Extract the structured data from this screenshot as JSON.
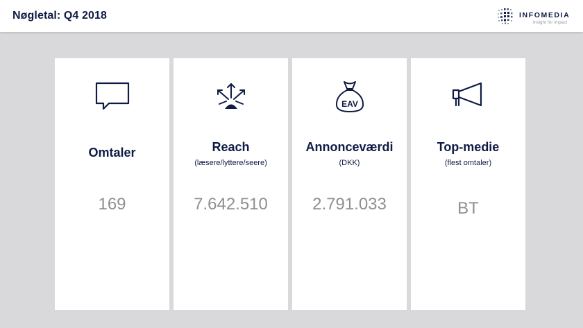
{
  "header": {
    "title": "Nøgletal: Q4 2018",
    "brand_name": "INFOMEDIA",
    "brand_tagline": "Insight for impact"
  },
  "colors": {
    "navy": "#0f1b45",
    "value_gray": "#8f8f8f",
    "background": "#d9d9dc",
    "card": "#ffffff"
  },
  "cards": [
    {
      "icon": "speech-bubble-icon",
      "label": "Omtaler",
      "sublabel": "",
      "value": "169"
    },
    {
      "icon": "broadcast-arrows-icon",
      "label": "Reach",
      "sublabel": "(læsere/lyttere/seere)",
      "value": "7.642.510"
    },
    {
      "icon": "money-bag-eav-icon",
      "label": "Annonceværdi",
      "sublabel": "(DKK)",
      "value": "2.791.033",
      "icon_text": "EAV"
    },
    {
      "icon": "megaphone-icon",
      "label": "Top-medie",
      "sublabel": "(flest omtaler)",
      "value": "BT"
    }
  ]
}
